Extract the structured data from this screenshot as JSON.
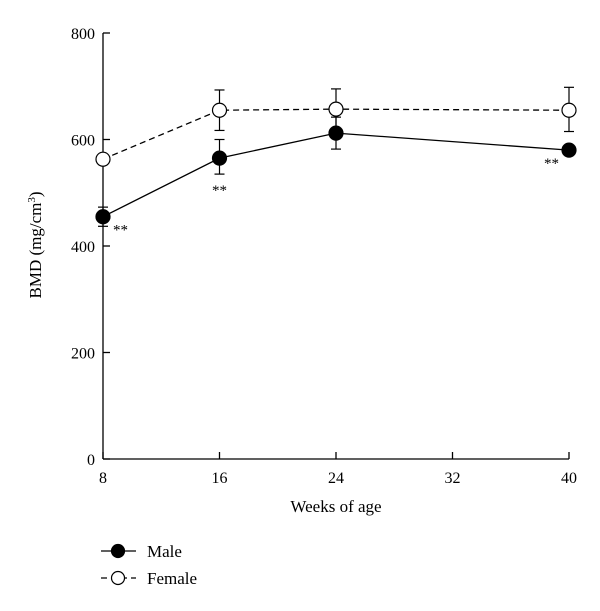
{
  "chart_data": {
    "type": "line",
    "xlabel": "Weeks of age",
    "ylabel_main": "BMD (mg/cm",
    "ylabel_sup": "3",
    "ylabel_close": ")",
    "x_ticks": [
      8,
      16,
      24,
      32,
      40
    ],
    "y_ticks": [
      0,
      200,
      400,
      600,
      800
    ],
    "xlim": [
      8,
      40
    ],
    "ylim": [
      0,
      800
    ],
    "grid": false,
    "legend_position": "bottom-left",
    "series": [
      {
        "name": "Male",
        "marker": "filled-circle",
        "line_style": "solid",
        "x": [
          8,
          16,
          24,
          40
        ],
        "y": [
          455,
          565,
          612,
          580
        ],
        "error_up": [
          18,
          35,
          30,
          0
        ],
        "error_down": [
          18,
          30,
          30,
          0
        ]
      },
      {
        "name": "Female",
        "marker": "open-circle",
        "line_style": "dashed",
        "x": [
          8,
          16,
          24,
          40
        ],
        "y": [
          563,
          655,
          657,
          655
        ],
        "error_up": [
          0,
          38,
          38,
          43
        ],
        "error_down": [
          0,
          38,
          40,
          40
        ]
      }
    ],
    "annotations": [
      {
        "text": "**",
        "x": 8,
        "y": 455,
        "placement": "right"
      },
      {
        "text": "**",
        "x": 16,
        "y": 565,
        "placement": "below"
      },
      {
        "text": "**",
        "x": 40,
        "y": 580,
        "placement": "left"
      }
    ]
  }
}
